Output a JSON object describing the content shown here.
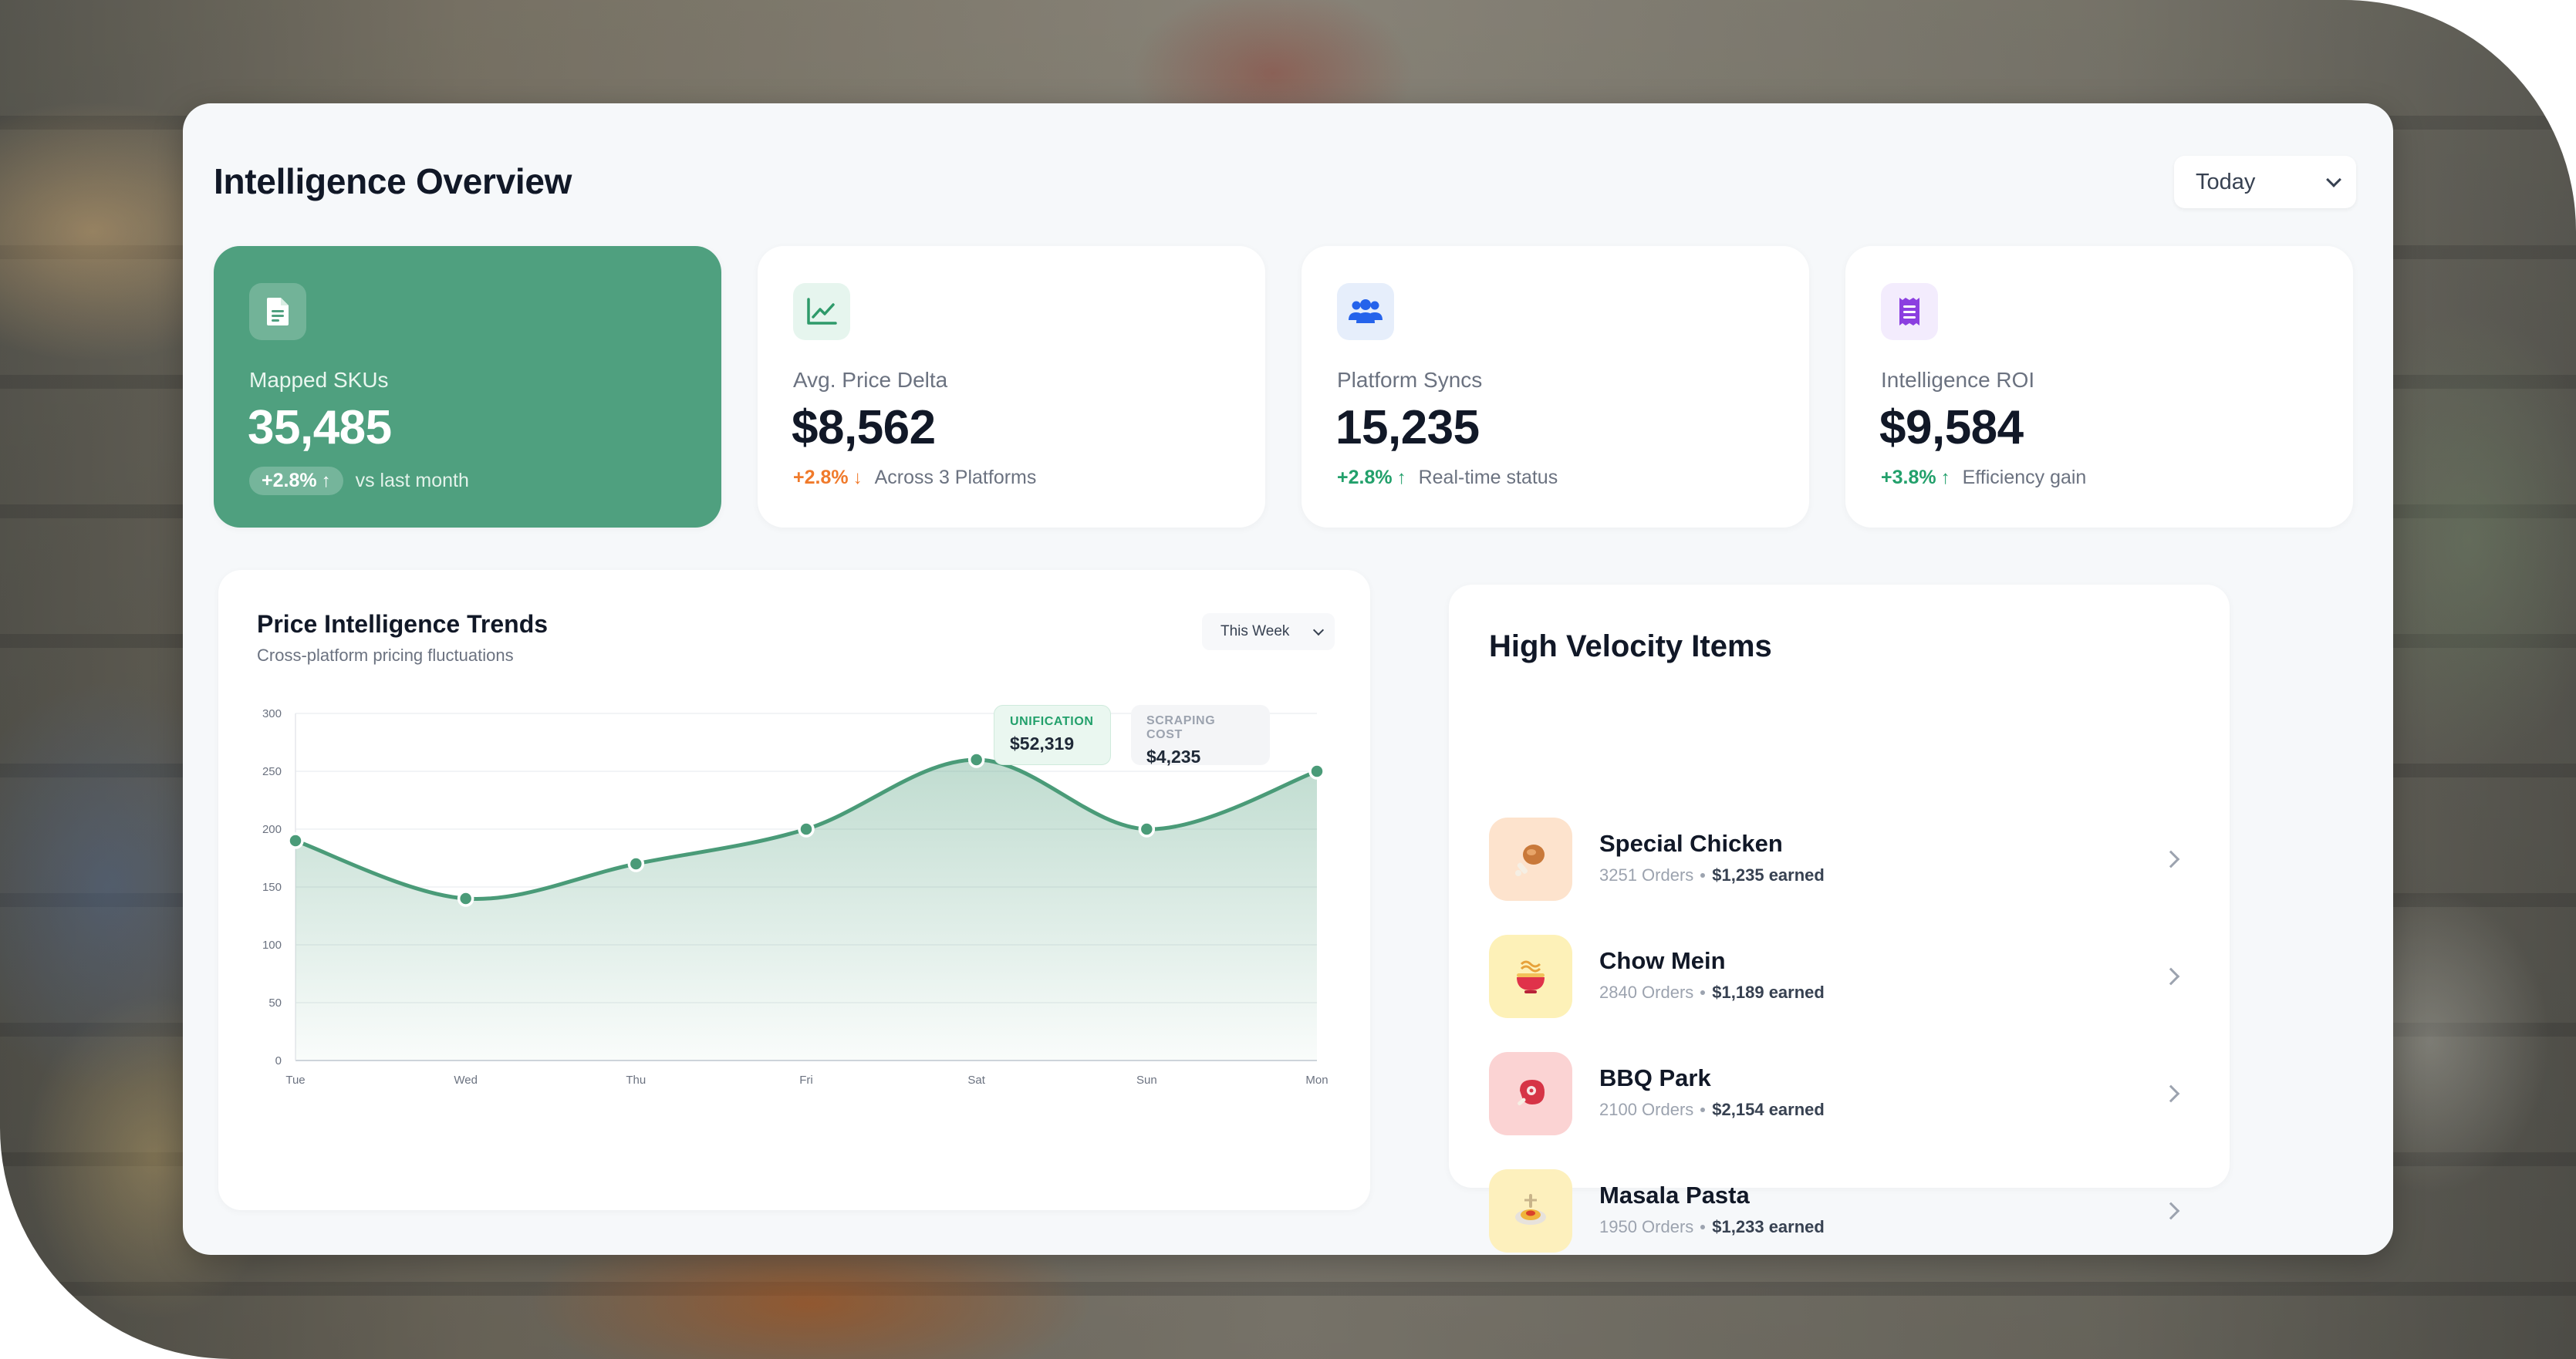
{
  "header": {
    "title": "Intelligence Overview",
    "period": "Today"
  },
  "stats": [
    {
      "label": "Mapped SKUs",
      "value": "35,485",
      "change": "+2.8%",
      "direction": "up",
      "note": "vs last month",
      "icon": "document-icon",
      "featured": true
    },
    {
      "label": "Avg. Price Delta",
      "value": "$8,562",
      "change": "+2.8%",
      "direction": "down",
      "note": "Across 3 Platforms",
      "icon": "line-chart-icon",
      "featured": false
    },
    {
      "label": "Platform Syncs",
      "value": "15,235",
      "change": "+2.8%",
      "direction": "up",
      "note": "Real-time status",
      "icon": "users-icon",
      "featured": false
    },
    {
      "label": "Intelligence ROI",
      "value": "$9,584",
      "change": "+3.8%",
      "direction": "up",
      "note": "Efficiency gain",
      "icon": "receipt-icon",
      "featured": false
    }
  ],
  "trends": {
    "title": "Price Intelligence Trends",
    "subtitle": "Cross-platform pricing fluctuations",
    "period": "This Week",
    "tooltips": [
      {
        "label": "UNIFICATION",
        "value": "$52,319"
      },
      {
        "label": "SCRAPING COST",
        "value": "$4,235"
      }
    ]
  },
  "chart_data": {
    "type": "area",
    "categories": [
      "Tue",
      "Wed",
      "Thu",
      "Fri",
      "Sat",
      "Sun",
      "Mon"
    ],
    "values": [
      190,
      140,
      170,
      200,
      260,
      200,
      250
    ],
    "ylim": [
      0,
      300
    ],
    "yticks": [
      0,
      50,
      100,
      150,
      200,
      250,
      300
    ],
    "grid": true,
    "color": "#4a9b78"
  },
  "velocity": {
    "title": "High Velocity Items",
    "items": [
      {
        "name": "Special Chicken",
        "orders": "3251 Orders",
        "earned": "$1,235 earned",
        "icon": "drumstick-icon",
        "bg": "#fde3cd"
      },
      {
        "name": "Chow Mein",
        "orders": "2840 Orders",
        "earned": "$1,189 earned",
        "icon": "noodle-bowl-icon",
        "bg": "#fdf1b8"
      },
      {
        "name": "BBQ Park",
        "orders": "2100 Orders",
        "earned": "$2,154 earned",
        "icon": "meat-icon",
        "bg": "#fbd3d3"
      },
      {
        "name": "Masala Pasta",
        "orders": "1950 Orders",
        "earned": "$1,233 earned",
        "icon": "pasta-plate-icon",
        "bg": "#fdf0bd"
      }
    ]
  },
  "colors": {
    "accent": "#4fa07f",
    "up": "#22a06b",
    "down": "#f07a2b"
  }
}
